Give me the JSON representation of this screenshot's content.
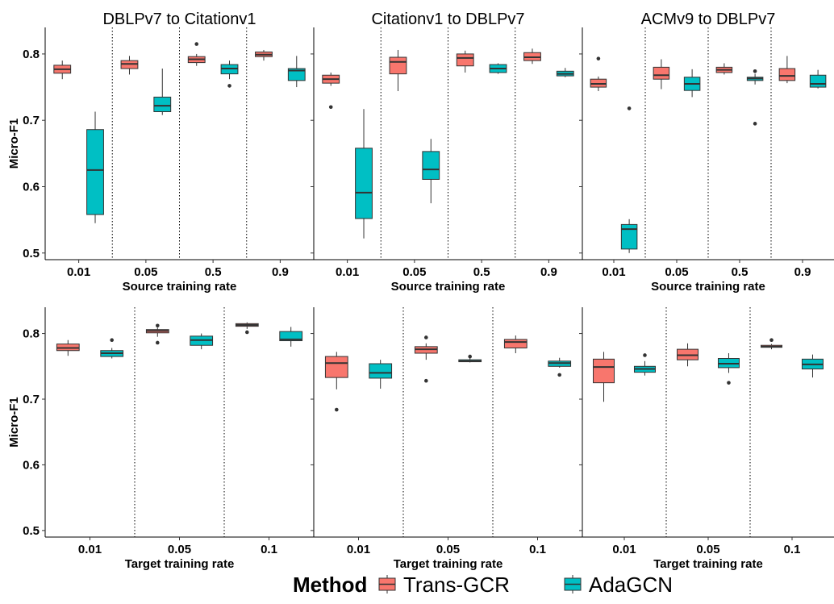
{
  "legend": {
    "title": "Method",
    "items": [
      {
        "label": "Trans-GCR",
        "color": "#F8766D"
      },
      {
        "label": "AdaGCN",
        "color": "#00BFC4"
      }
    ]
  },
  "chart_data": [
    {
      "type": "boxplot",
      "title": "DBLPv7 to Citationv1",
      "xlabel": "Source training rate",
      "ylabel": "Micro-F1",
      "ylim": [
        0.49,
        0.84
      ],
      "yticks": [
        0.5,
        0.6,
        0.7,
        0.8
      ],
      "show_ytick_labels": true,
      "categories": [
        "0.01",
        "0.05",
        "0.5",
        "0.9"
      ],
      "series": [
        {
          "name": "Trans-GCR",
          "boxes": [
            {
              "min": 0.762,
              "q1": 0.771,
              "median": 0.777,
              "q3": 0.783,
              "max": 0.79,
              "outliers": []
            },
            {
              "min": 0.769,
              "q1": 0.778,
              "median": 0.785,
              "q3": 0.79,
              "max": 0.797,
              "outliers": []
            },
            {
              "min": 0.782,
              "q1": 0.787,
              "median": 0.792,
              "q3": 0.796,
              "max": 0.8,
              "outliers": [
                0.815
              ]
            },
            {
              "min": 0.79,
              "q1": 0.796,
              "median": 0.799,
              "q3": 0.803,
              "max": 0.806,
              "outliers": []
            }
          ]
        },
        {
          "name": "AdaGCN",
          "boxes": [
            {
              "min": 0.545,
              "q1": 0.558,
              "median": 0.625,
              "q3": 0.686,
              "max": 0.713,
              "outliers": []
            },
            {
              "min": 0.708,
              "q1": 0.713,
              "median": 0.722,
              "q3": 0.735,
              "max": 0.778,
              "outliers": []
            },
            {
              "min": 0.762,
              "q1": 0.77,
              "median": 0.778,
              "q3": 0.784,
              "max": 0.79,
              "outliers": [
                0.752
              ]
            },
            {
              "min": 0.75,
              "q1": 0.76,
              "median": 0.775,
              "q3": 0.778,
              "max": 0.797,
              "outliers": []
            }
          ]
        }
      ]
    },
    {
      "type": "boxplot",
      "title": "Citationv1 to DBLPv7",
      "xlabel": "Source training rate",
      "ylabel": "",
      "ylim": [
        0.49,
        0.84
      ],
      "yticks": [
        0.5,
        0.6,
        0.7,
        0.8
      ],
      "show_ytick_labels": false,
      "categories": [
        "0.01",
        "0.05",
        "0.5",
        "0.9"
      ],
      "series": [
        {
          "name": "Trans-GCR",
          "boxes": [
            {
              "min": 0.752,
              "q1": 0.756,
              "median": 0.762,
              "q3": 0.768,
              "max": 0.772,
              "outliers": [
                0.72
              ]
            },
            {
              "min": 0.744,
              "q1": 0.77,
              "median": 0.788,
              "q3": 0.795,
              "max": 0.806,
              "outliers": []
            },
            {
              "min": 0.772,
              "q1": 0.782,
              "median": 0.794,
              "q3": 0.8,
              "max": 0.805,
              "outliers": []
            },
            {
              "min": 0.785,
              "q1": 0.79,
              "median": 0.795,
              "q3": 0.802,
              "max": 0.808,
              "outliers": []
            }
          ]
        },
        {
          "name": "AdaGCN",
          "boxes": [
            {
              "min": 0.522,
              "q1": 0.552,
              "median": 0.591,
              "q3": 0.658,
              "max": 0.717,
              "outliers": []
            },
            {
              "min": 0.575,
              "q1": 0.611,
              "median": 0.626,
              "q3": 0.653,
              "max": 0.672,
              "outliers": []
            },
            {
              "min": 0.77,
              "q1": 0.772,
              "median": 0.778,
              "q3": 0.784,
              "max": 0.786,
              "outliers": []
            },
            {
              "min": 0.765,
              "q1": 0.767,
              "median": 0.77,
              "q3": 0.774,
              "max": 0.779,
              "outliers": []
            }
          ]
        }
      ]
    },
    {
      "type": "boxplot",
      "title": "ACMv9 to DBLPv7",
      "xlabel": "Source training rate",
      "ylabel": "",
      "ylim": [
        0.49,
        0.84
      ],
      "yticks": [
        0.5,
        0.6,
        0.7,
        0.8
      ],
      "show_ytick_labels": false,
      "categories": [
        "0.01",
        "0.05",
        "0.5",
        "0.9"
      ],
      "series": [
        {
          "name": "Trans-GCR",
          "boxes": [
            {
              "min": 0.744,
              "q1": 0.75,
              "median": 0.755,
              "q3": 0.762,
              "max": 0.766,
              "outliers": [
                0.793
              ]
            },
            {
              "min": 0.747,
              "q1": 0.762,
              "median": 0.768,
              "q3": 0.78,
              "max": 0.792,
              "outliers": []
            },
            {
              "min": 0.769,
              "q1": 0.772,
              "median": 0.776,
              "q3": 0.78,
              "max": 0.786,
              "outliers": []
            },
            {
              "min": 0.756,
              "q1": 0.76,
              "median": 0.767,
              "q3": 0.778,
              "max": 0.797,
              "outliers": []
            }
          ]
        },
        {
          "name": "AdaGCN",
          "boxes": [
            {
              "min": 0.5,
              "q1": 0.506,
              "median": 0.536,
              "q3": 0.543,
              "max": 0.551,
              "outliers": [
                0.718
              ]
            },
            {
              "min": 0.735,
              "q1": 0.745,
              "median": 0.755,
              "q3": 0.765,
              "max": 0.777,
              "outliers": []
            },
            {
              "min": 0.754,
              "q1": 0.76,
              "median": 0.763,
              "q3": 0.765,
              "max": 0.77,
              "outliers": [
                0.774,
                0.695
              ]
            },
            {
              "min": 0.748,
              "q1": 0.75,
              "median": 0.755,
              "q3": 0.768,
              "max": 0.776,
              "outliers": []
            }
          ]
        }
      ]
    },
    {
      "type": "boxplot",
      "title": "",
      "xlabel": "Target training rate",
      "ylabel": "Micro-F1",
      "ylim": [
        0.49,
        0.84
      ],
      "yticks": [
        0.5,
        0.6,
        0.7,
        0.8
      ],
      "show_ytick_labels": true,
      "categories": [
        "0.01",
        "0.05",
        "0.1"
      ],
      "series": [
        {
          "name": "Trans-GCR",
          "boxes": [
            {
              "min": 0.766,
              "q1": 0.774,
              "median": 0.778,
              "q3": 0.784,
              "max": 0.79,
              "outliers": []
            },
            {
              "min": 0.795,
              "q1": 0.801,
              "median": 0.804,
              "q3": 0.806,
              "max": 0.809,
              "outliers": [
                0.812,
                0.786
              ]
            },
            {
              "min": 0.807,
              "q1": 0.811,
              "median": 0.813,
              "q3": 0.815,
              "max": 0.817,
              "outliers": [
                0.802
              ]
            }
          ]
        },
        {
          "name": "AdaGCN",
          "boxes": [
            {
              "min": 0.762,
              "q1": 0.765,
              "median": 0.77,
              "q3": 0.774,
              "max": 0.778,
              "outliers": [
                0.79
              ]
            },
            {
              "min": 0.776,
              "q1": 0.782,
              "median": 0.79,
              "q3": 0.796,
              "max": 0.8,
              "outliers": []
            },
            {
              "min": 0.78,
              "q1": 0.789,
              "median": 0.791,
              "q3": 0.803,
              "max": 0.81,
              "outliers": []
            }
          ]
        }
      ]
    },
    {
      "type": "boxplot",
      "title": "",
      "xlabel": "Target training rate",
      "ylabel": "",
      "ylim": [
        0.49,
        0.84
      ],
      "yticks": [
        0.5,
        0.6,
        0.7,
        0.8
      ],
      "show_ytick_labels": false,
      "categories": [
        "0.01",
        "0.05",
        "0.1"
      ],
      "series": [
        {
          "name": "Trans-GCR",
          "boxes": [
            {
              "min": 0.715,
              "q1": 0.733,
              "median": 0.755,
              "q3": 0.765,
              "max": 0.772,
              "outliers": [
                0.684
              ]
            },
            {
              "min": 0.76,
              "q1": 0.77,
              "median": 0.776,
              "q3": 0.78,
              "max": 0.785,
              "outliers": [
                0.794,
                0.728
              ]
            },
            {
              "min": 0.77,
              "q1": 0.778,
              "median": 0.787,
              "q3": 0.791,
              "max": 0.797,
              "outliers": []
            }
          ]
        },
        {
          "name": "AdaGCN",
          "boxes": [
            {
              "min": 0.716,
              "q1": 0.732,
              "median": 0.74,
              "q3": 0.754,
              "max": 0.76,
              "outliers": []
            },
            {
              "min": 0.756,
              "q1": 0.757,
              "median": 0.758,
              "q3": 0.76,
              "max": 0.763,
              "outliers": [
                0.765
              ]
            },
            {
              "min": 0.748,
              "q1": 0.75,
              "median": 0.755,
              "q3": 0.758,
              "max": 0.763,
              "outliers": [
                0.737
              ]
            }
          ]
        }
      ]
    },
    {
      "type": "boxplot",
      "title": "",
      "xlabel": "Target training rate",
      "ylabel": "",
      "ylim": [
        0.49,
        0.84
      ],
      "yticks": [
        0.5,
        0.6,
        0.7,
        0.8
      ],
      "show_ytick_labels": false,
      "categories": [
        "0.01",
        "0.05",
        "0.1"
      ],
      "series": [
        {
          "name": "Trans-GCR",
          "boxes": [
            {
              "min": 0.696,
              "q1": 0.725,
              "median": 0.749,
              "q3": 0.761,
              "max": 0.772,
              "outliers": []
            },
            {
              "min": 0.75,
              "q1": 0.76,
              "median": 0.767,
              "q3": 0.776,
              "max": 0.785,
              "outliers": []
            },
            {
              "min": 0.776,
              "q1": 0.779,
              "median": 0.78,
              "q3": 0.782,
              "max": 0.784,
              "outliers": [
                0.79
              ]
            }
          ]
        },
        {
          "name": "AdaGCN",
          "boxes": [
            {
              "min": 0.736,
              "q1": 0.741,
              "median": 0.746,
              "q3": 0.75,
              "max": 0.758,
              "outliers": [
                0.767
              ]
            },
            {
              "min": 0.74,
              "q1": 0.748,
              "median": 0.754,
              "q3": 0.762,
              "max": 0.77,
              "outliers": [
                0.725
              ]
            },
            {
              "min": 0.733,
              "q1": 0.746,
              "median": 0.753,
              "q3": 0.761,
              "max": 0.768,
              "outliers": []
            }
          ]
        }
      ]
    }
  ]
}
